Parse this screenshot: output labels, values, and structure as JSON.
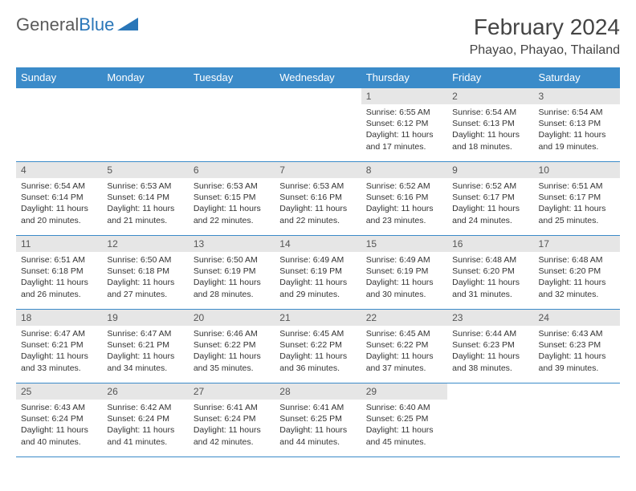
{
  "logo": {
    "text1": "General",
    "text2": "Blue"
  },
  "title": "February 2024",
  "location": "Phayao, Phayao, Thailand",
  "weekdays": [
    "Sunday",
    "Monday",
    "Tuesday",
    "Wednesday",
    "Thursday",
    "Friday",
    "Saturday"
  ],
  "colors": {
    "header_bg": "#3b8bc9",
    "header_text": "#ffffff",
    "daynum_bg": "#e6e6e6",
    "border": "#3b8bc9",
    "logo_blue": "#2976b8"
  },
  "weeks": [
    [
      {
        "day": "",
        "sunrise": "",
        "sunset": "",
        "daylight": ""
      },
      {
        "day": "",
        "sunrise": "",
        "sunset": "",
        "daylight": ""
      },
      {
        "day": "",
        "sunrise": "",
        "sunset": "",
        "daylight": ""
      },
      {
        "day": "",
        "sunrise": "",
        "sunset": "",
        "daylight": ""
      },
      {
        "day": "1",
        "sunrise": "Sunrise: 6:55 AM",
        "sunset": "Sunset: 6:12 PM",
        "daylight": "Daylight: 11 hours and 17 minutes."
      },
      {
        "day": "2",
        "sunrise": "Sunrise: 6:54 AM",
        "sunset": "Sunset: 6:13 PM",
        "daylight": "Daylight: 11 hours and 18 minutes."
      },
      {
        "day": "3",
        "sunrise": "Sunrise: 6:54 AM",
        "sunset": "Sunset: 6:13 PM",
        "daylight": "Daylight: 11 hours and 19 minutes."
      }
    ],
    [
      {
        "day": "4",
        "sunrise": "Sunrise: 6:54 AM",
        "sunset": "Sunset: 6:14 PM",
        "daylight": "Daylight: 11 hours and 20 minutes."
      },
      {
        "day": "5",
        "sunrise": "Sunrise: 6:53 AM",
        "sunset": "Sunset: 6:14 PM",
        "daylight": "Daylight: 11 hours and 21 minutes."
      },
      {
        "day": "6",
        "sunrise": "Sunrise: 6:53 AM",
        "sunset": "Sunset: 6:15 PM",
        "daylight": "Daylight: 11 hours and 22 minutes."
      },
      {
        "day": "7",
        "sunrise": "Sunrise: 6:53 AM",
        "sunset": "Sunset: 6:16 PM",
        "daylight": "Daylight: 11 hours and 22 minutes."
      },
      {
        "day": "8",
        "sunrise": "Sunrise: 6:52 AM",
        "sunset": "Sunset: 6:16 PM",
        "daylight": "Daylight: 11 hours and 23 minutes."
      },
      {
        "day": "9",
        "sunrise": "Sunrise: 6:52 AM",
        "sunset": "Sunset: 6:17 PM",
        "daylight": "Daylight: 11 hours and 24 minutes."
      },
      {
        "day": "10",
        "sunrise": "Sunrise: 6:51 AM",
        "sunset": "Sunset: 6:17 PM",
        "daylight": "Daylight: 11 hours and 25 minutes."
      }
    ],
    [
      {
        "day": "11",
        "sunrise": "Sunrise: 6:51 AM",
        "sunset": "Sunset: 6:18 PM",
        "daylight": "Daylight: 11 hours and 26 minutes."
      },
      {
        "day": "12",
        "sunrise": "Sunrise: 6:50 AM",
        "sunset": "Sunset: 6:18 PM",
        "daylight": "Daylight: 11 hours and 27 minutes."
      },
      {
        "day": "13",
        "sunrise": "Sunrise: 6:50 AM",
        "sunset": "Sunset: 6:19 PM",
        "daylight": "Daylight: 11 hours and 28 minutes."
      },
      {
        "day": "14",
        "sunrise": "Sunrise: 6:49 AM",
        "sunset": "Sunset: 6:19 PM",
        "daylight": "Daylight: 11 hours and 29 minutes."
      },
      {
        "day": "15",
        "sunrise": "Sunrise: 6:49 AM",
        "sunset": "Sunset: 6:19 PM",
        "daylight": "Daylight: 11 hours and 30 minutes."
      },
      {
        "day": "16",
        "sunrise": "Sunrise: 6:48 AM",
        "sunset": "Sunset: 6:20 PM",
        "daylight": "Daylight: 11 hours and 31 minutes."
      },
      {
        "day": "17",
        "sunrise": "Sunrise: 6:48 AM",
        "sunset": "Sunset: 6:20 PM",
        "daylight": "Daylight: 11 hours and 32 minutes."
      }
    ],
    [
      {
        "day": "18",
        "sunrise": "Sunrise: 6:47 AM",
        "sunset": "Sunset: 6:21 PM",
        "daylight": "Daylight: 11 hours and 33 minutes."
      },
      {
        "day": "19",
        "sunrise": "Sunrise: 6:47 AM",
        "sunset": "Sunset: 6:21 PM",
        "daylight": "Daylight: 11 hours and 34 minutes."
      },
      {
        "day": "20",
        "sunrise": "Sunrise: 6:46 AM",
        "sunset": "Sunset: 6:22 PM",
        "daylight": "Daylight: 11 hours and 35 minutes."
      },
      {
        "day": "21",
        "sunrise": "Sunrise: 6:45 AM",
        "sunset": "Sunset: 6:22 PM",
        "daylight": "Daylight: 11 hours and 36 minutes."
      },
      {
        "day": "22",
        "sunrise": "Sunrise: 6:45 AM",
        "sunset": "Sunset: 6:22 PM",
        "daylight": "Daylight: 11 hours and 37 minutes."
      },
      {
        "day": "23",
        "sunrise": "Sunrise: 6:44 AM",
        "sunset": "Sunset: 6:23 PM",
        "daylight": "Daylight: 11 hours and 38 minutes."
      },
      {
        "day": "24",
        "sunrise": "Sunrise: 6:43 AM",
        "sunset": "Sunset: 6:23 PM",
        "daylight": "Daylight: 11 hours and 39 minutes."
      }
    ],
    [
      {
        "day": "25",
        "sunrise": "Sunrise: 6:43 AM",
        "sunset": "Sunset: 6:24 PM",
        "daylight": "Daylight: 11 hours and 40 minutes."
      },
      {
        "day": "26",
        "sunrise": "Sunrise: 6:42 AM",
        "sunset": "Sunset: 6:24 PM",
        "daylight": "Daylight: 11 hours and 41 minutes."
      },
      {
        "day": "27",
        "sunrise": "Sunrise: 6:41 AM",
        "sunset": "Sunset: 6:24 PM",
        "daylight": "Daylight: 11 hours and 42 minutes."
      },
      {
        "day": "28",
        "sunrise": "Sunrise: 6:41 AM",
        "sunset": "Sunset: 6:25 PM",
        "daylight": "Daylight: 11 hours and 44 minutes."
      },
      {
        "day": "29",
        "sunrise": "Sunrise: 6:40 AM",
        "sunset": "Sunset: 6:25 PM",
        "daylight": "Daylight: 11 hours and 45 minutes."
      },
      {
        "day": "",
        "sunrise": "",
        "sunset": "",
        "daylight": ""
      },
      {
        "day": "",
        "sunrise": "",
        "sunset": "",
        "daylight": ""
      }
    ]
  ]
}
